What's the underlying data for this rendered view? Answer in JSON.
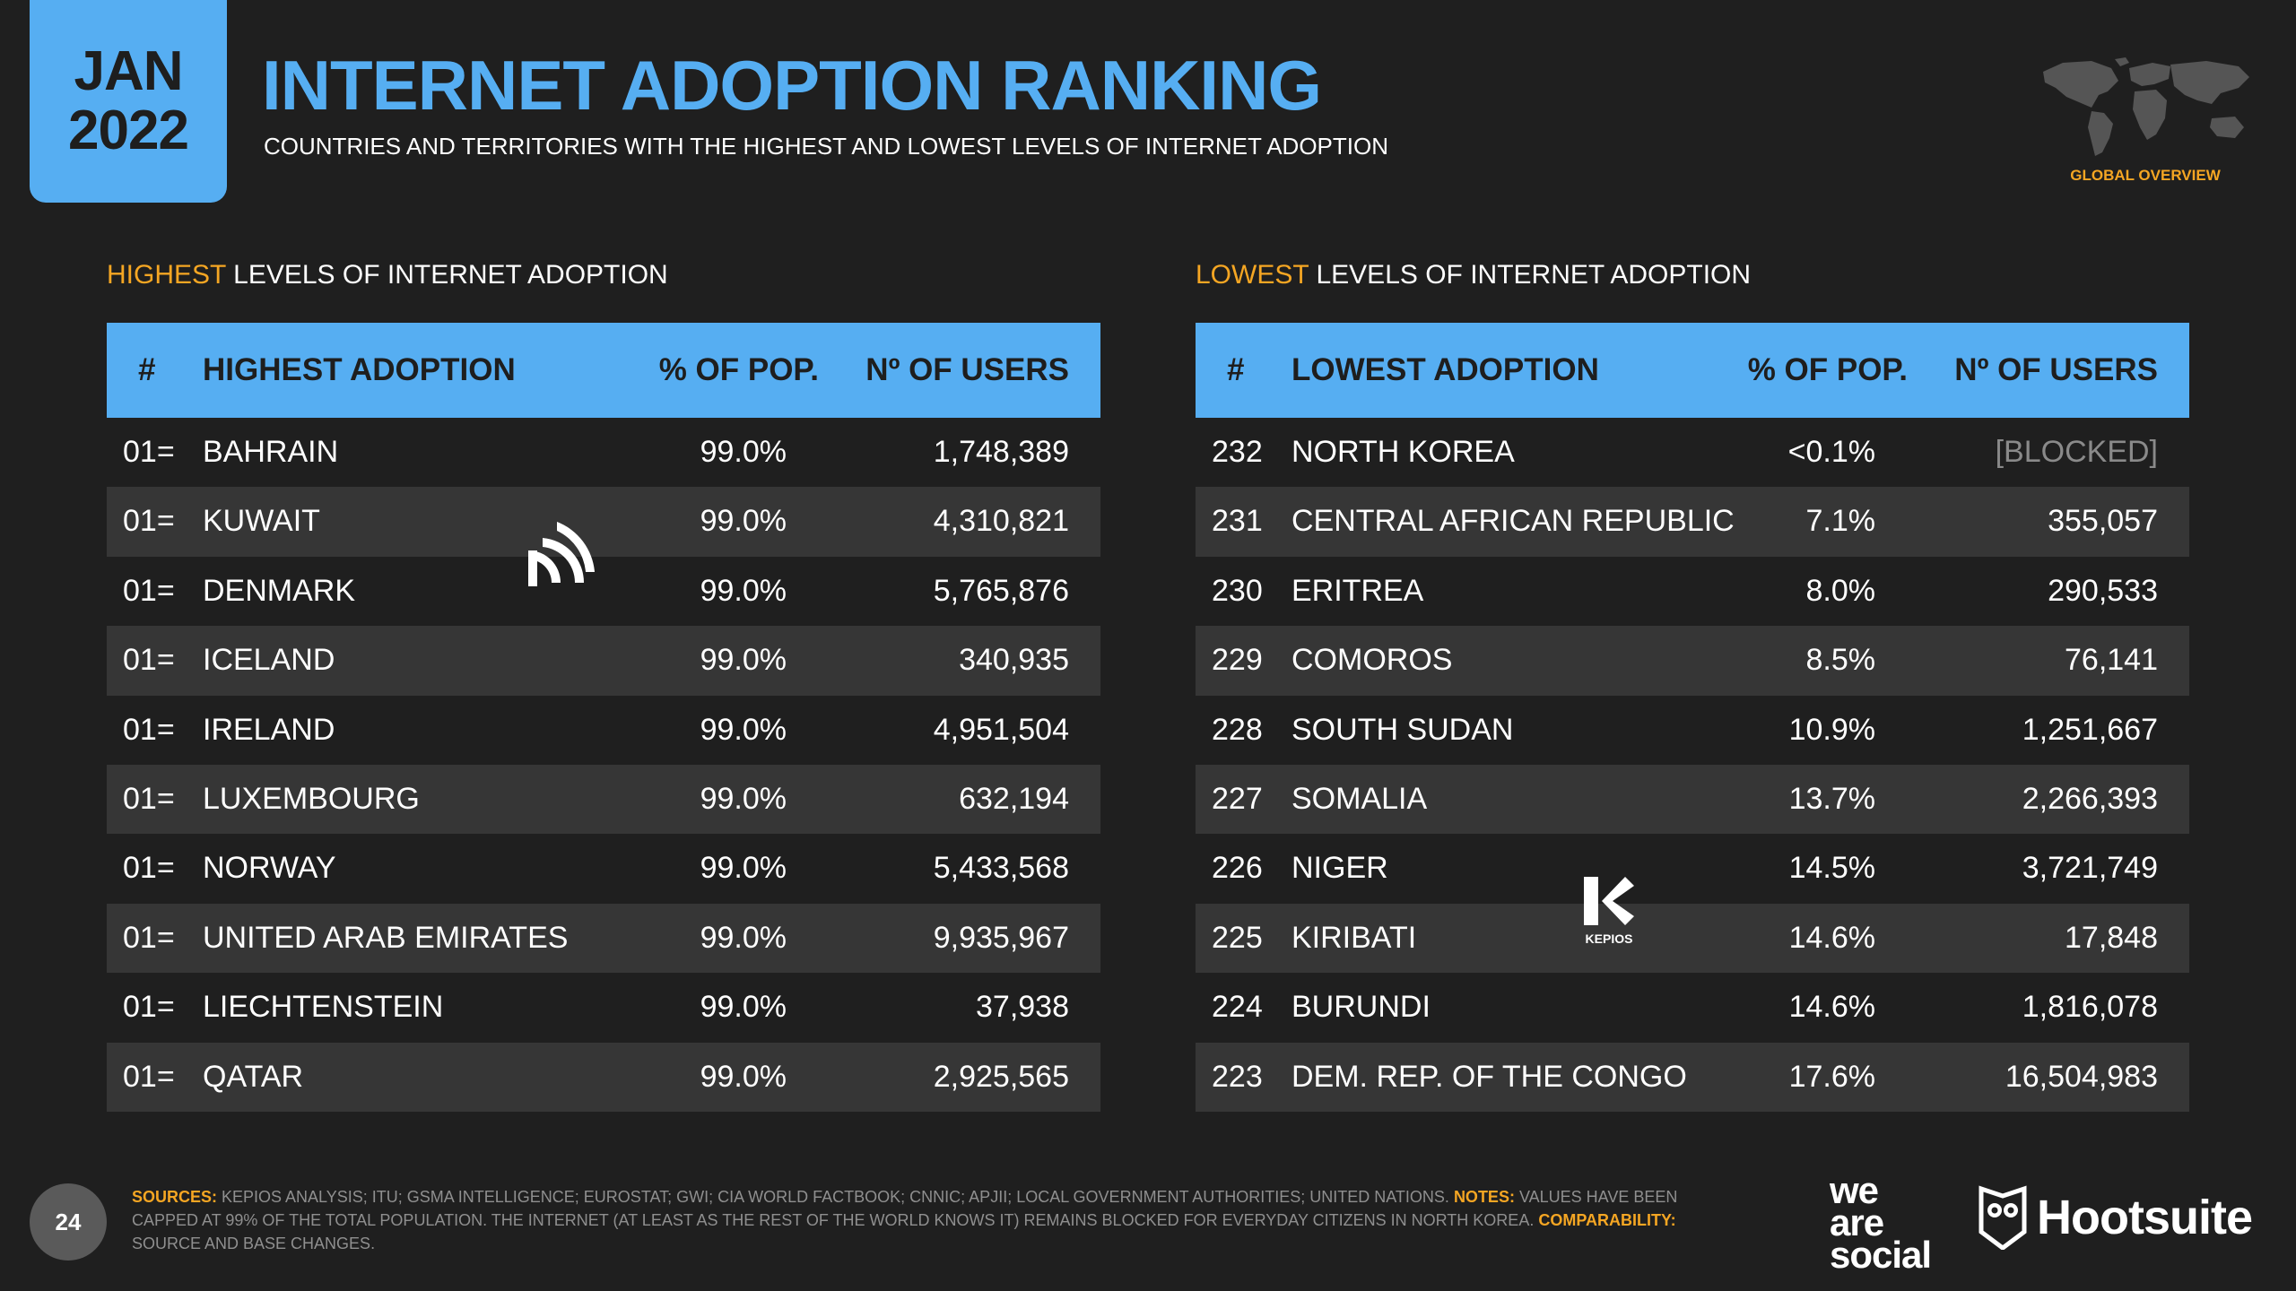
{
  "header": {
    "month": "JAN",
    "year": "2022",
    "title": "INTERNET ADOPTION RANKING",
    "subtitle": "COUNTRIES AND TERRITORIES WITH THE HIGHEST AND LOWEST LEVELS OF INTERNET ADOPTION",
    "global_label": "GLOBAL OVERVIEW"
  },
  "highest": {
    "section_highlight": "HIGHEST",
    "section_rest": " LEVELS OF INTERNET ADOPTION",
    "columns": {
      "rank": "#",
      "name": "HIGHEST ADOPTION",
      "pct": "% OF POP.",
      "users": "Nº OF USERS"
    },
    "rows": [
      {
        "rank": "01=",
        "name": "BAHRAIN",
        "pct": "99.0%",
        "users": "1,748,389"
      },
      {
        "rank": "01=",
        "name": "KUWAIT",
        "pct": "99.0%",
        "users": "4,310,821"
      },
      {
        "rank": "01=",
        "name": "DENMARK",
        "pct": "99.0%",
        "users": "5,765,876"
      },
      {
        "rank": "01=",
        "name": "ICELAND",
        "pct": "99.0%",
        "users": "340,935"
      },
      {
        "rank": "01=",
        "name": "IRELAND",
        "pct": "99.0%",
        "users": "4,951,504"
      },
      {
        "rank": "01=",
        "name": "LUXEMBOURG",
        "pct": "99.0%",
        "users": "632,194"
      },
      {
        "rank": "01=",
        "name": "NORWAY",
        "pct": "99.0%",
        "users": "5,433,568"
      },
      {
        "rank": "01=",
        "name": "UNITED ARAB EMIRATES",
        "pct": "99.0%",
        "users": "9,935,967"
      },
      {
        "rank": "01=",
        "name": "LIECHTENSTEIN",
        "pct": "99.0%",
        "users": "37,938"
      },
      {
        "rank": "01=",
        "name": "QATAR",
        "pct": "99.0%",
        "users": "2,925,565"
      }
    ]
  },
  "lowest": {
    "section_highlight": "LOWEST",
    "section_rest": " LEVELS OF INTERNET ADOPTION",
    "columns": {
      "rank": "#",
      "name": "LOWEST ADOPTION",
      "pct": "% OF POP.",
      "users": "Nº OF USERS"
    },
    "rows": [
      {
        "rank": "232",
        "name": "NORTH KOREA",
        "pct": "<0.1%",
        "users": "[BLOCKED]"
      },
      {
        "rank": "231",
        "name": "CENTRAL AFRICAN REPUBLIC",
        "pct": "7.1%",
        "users": "355,057"
      },
      {
        "rank": "230",
        "name": "ERITREA",
        "pct": "8.0%",
        "users": "290,533"
      },
      {
        "rank": "229",
        "name": "COMOROS",
        "pct": "8.5%",
        "users": "76,141"
      },
      {
        "rank": "228",
        "name": "SOUTH SUDAN",
        "pct": "10.9%",
        "users": "1,251,667"
      },
      {
        "rank": "227",
        "name": "SOMALIA",
        "pct": "13.7%",
        "users": "2,266,393"
      },
      {
        "rank": "226",
        "name": "NIGER",
        "pct": "14.5%",
        "users": "3,721,749"
      },
      {
        "rank": "225",
        "name": "KIRIBATI",
        "pct": "14.6%",
        "users": "17,848"
      },
      {
        "rank": "224",
        "name": "BURUNDI",
        "pct": "14.6%",
        "users": "1,816,078"
      },
      {
        "rank": "223",
        "name": "DEM. REP. OF THE CONGO",
        "pct": "17.6%",
        "users": "16,504,983"
      }
    ]
  },
  "footer": {
    "page_number": "24",
    "sources_label": "SOURCES:",
    "sources_text": " KEPIOS ANALYSIS; ITU; GSMA INTELLIGENCE; EUROSTAT; GWI; CIA WORLD FACTBOOK; CNNIC; APJII; LOCAL GOVERNMENT AUTHORITIES; UNITED NATIONS. ",
    "notes_label": "NOTES:",
    "notes_text": " VALUES HAVE BEEN CAPPED AT 99% OF THE TOTAL POPULATION. THE INTERNET (AT LEAST AS THE REST OF THE WORLD KNOWS IT) REMAINS BLOCKED FOR EVERYDAY CITIZENS IN NORTH KOREA. ",
    "comparability_label": "COMPARABILITY:",
    "comparability_text": " SOURCE AND BASE CHANGES.",
    "brand_we": "we",
    "brand_are": "are",
    "brand_social": "social",
    "brand_hootsuite": "Hootsuite",
    "kepios_label": "KEPIOS"
  },
  "colors": {
    "accent_blue": "#56aef2",
    "accent_orange": "#f5a623",
    "background": "#1f1f1f",
    "row_alt": "#363636"
  }
}
